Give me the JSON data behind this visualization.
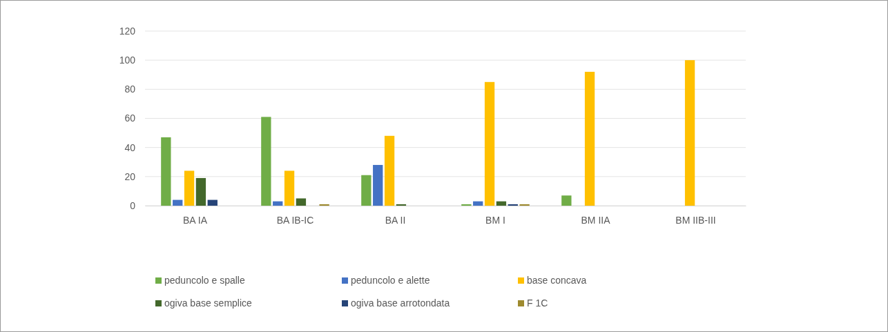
{
  "chart_data": {
    "type": "bar",
    "categories": [
      "BA IA",
      "BA IB-IC",
      "BA II",
      "BM I",
      "BM IIA",
      "BM IIB-III"
    ],
    "series": [
      {
        "name": "peduncolo e spalle",
        "color": "#70ad47",
        "values": [
          47,
          61,
          21,
          1,
          7,
          0
        ]
      },
      {
        "name": "peduncolo e alette",
        "color": "#4472c4",
        "values": [
          4,
          3,
          28,
          3,
          0,
          0
        ]
      },
      {
        "name": "base concava",
        "color": "#ffc000",
        "values": [
          24,
          24,
          48,
          85,
          92,
          100
        ]
      },
      {
        "name": "ogiva base semplice",
        "color": "#43682b",
        "values": [
          19,
          5,
          1,
          3,
          0,
          0
        ]
      },
      {
        "name": "ogiva base arrotondata",
        "color": "#264478",
        "values": [
          4,
          0,
          0,
          1,
          0,
          0
        ]
      },
      {
        "name": "F 1C",
        "color": "#9e8a2f",
        "values": [
          0,
          1,
          0,
          1,
          0,
          0
        ]
      }
    ],
    "ylim": [
      0,
      120
    ],
    "yticks": [
      0,
      20,
      40,
      60,
      80,
      100,
      120
    ],
    "grid": "y",
    "legend": "bottom"
  }
}
